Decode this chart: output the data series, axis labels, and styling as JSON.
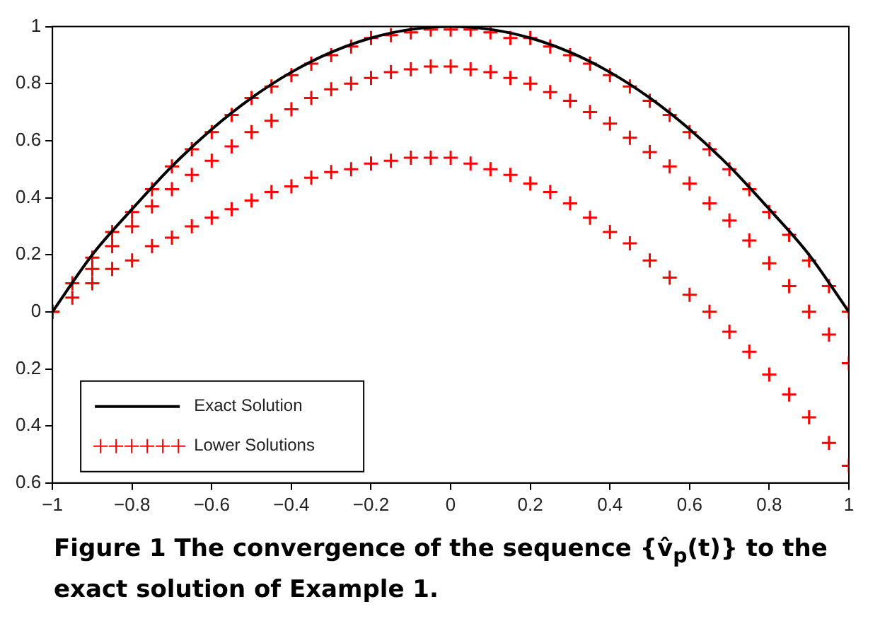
{
  "chart_data": {
    "type": "line",
    "x": [
      -1,
      -0.95,
      -0.9,
      -0.85,
      -0.8,
      -0.75,
      -0.7,
      -0.65,
      -0.6,
      -0.55,
      -0.5,
      -0.45,
      -0.4,
      -0.35,
      -0.3,
      -0.25,
      -0.2,
      -0.15,
      -0.1,
      -0.05,
      0,
      0.05,
      0.1,
      0.15,
      0.2,
      0.25,
      0.3,
      0.35,
      0.4,
      0.45,
      0.5,
      0.55,
      0.6,
      0.65,
      0.7,
      0.75,
      0.8,
      0.85,
      0.9,
      0.95,
      1
    ],
    "series": [
      {
        "name": "Exact Solution",
        "color": "#000000",
        "marker": "none",
        "line_style": "solid",
        "x": [
          -1,
          -0.9,
          -0.8,
          -0.7,
          -0.6,
          -0.5,
          -0.4,
          -0.3,
          -0.2,
          -0.1,
          0,
          0.1,
          0.2,
          0.3,
          0.4,
          0.5,
          0.6,
          0.7,
          0.8,
          0.9,
          1
        ],
        "values": [
          0,
          0.2,
          0.36,
          0.51,
          0.64,
          0.75,
          0.84,
          0.91,
          0.96,
          0.99,
          1,
          0.99,
          0.96,
          0.91,
          0.84,
          0.75,
          0.64,
          0.51,
          0.36,
          0.2,
          0
        ]
      },
      {
        "name": "Lower Solutions",
        "type": "scatter",
        "color": "#ff0000",
        "marker": "cross",
        "values": [
          0,
          0.1,
          0.19,
          0.28,
          0.35,
          0.43,
          0.51,
          0.57,
          0.63,
          0.69,
          0.75,
          0.79,
          0.83,
          0.87,
          0.9,
          0.93,
          0.96,
          0.97,
          0.98,
          0.99,
          0.99,
          0.99,
          0.98,
          0.96,
          0.96,
          0.93,
          0.9,
          0.87,
          0.83,
          0.79,
          0.74,
          0.69,
          0.63,
          0.57,
          0.5,
          0.43,
          0.35,
          0.27,
          0.18,
          0.09,
          0
        ]
      },
      {
        "type": "scatter",
        "color": "#ff0000",
        "marker": "cross",
        "values": [
          0,
          null,
          0.15,
          0.23,
          0.3,
          0.37,
          0.43,
          0.48,
          0.53,
          0.58,
          0.63,
          0.67,
          0.71,
          0.75,
          0.78,
          0.8,
          0.82,
          0.84,
          0.85,
          0.86,
          0.86,
          0.85,
          0.84,
          0.82,
          0.8,
          0.77,
          0.74,
          0.7,
          0.66,
          0.61,
          0.56,
          0.51,
          0.45,
          0.38,
          0.32,
          0.25,
          0.17,
          0.09,
          0,
          -0.08,
          -0.18
        ]
      },
      {
        "type": "scatter",
        "color": "#ff0000",
        "marker": "cross",
        "values": [
          0,
          0.05,
          0.1,
          0.15,
          0.18,
          0.23,
          0.26,
          0.3,
          0.33,
          0.36,
          0.39,
          0.42,
          0.44,
          0.47,
          0.49,
          0.5,
          0.52,
          0.53,
          0.54,
          0.54,
          0.54,
          0.52,
          0.5,
          0.48,
          0.45,
          0.42,
          0.38,
          0.33,
          0.28,
          0.24,
          0.18,
          0.12,
          0.06,
          0,
          -0.07,
          -0.14,
          -0.22,
          -0.29,
          -0.37,
          -0.46,
          -0.54
        ]
      }
    ],
    "xlim": [
      -1,
      1
    ],
    "ylim": [
      -0.6,
      1
    ],
    "xticks": [
      {
        "value": -1,
        "label": "−1"
      },
      {
        "value": -0.8,
        "label": "−0.8"
      },
      {
        "value": -0.6,
        "label": "−0.6"
      },
      {
        "value": -0.4,
        "label": "−0.4"
      },
      {
        "value": -0.2,
        "label": "−0.2"
      },
      0,
      0.2,
      0.4,
      0.6,
      0.8,
      1
    ],
    "yticks": [
      {
        "value": -0.6,
        "label": "0.6"
      },
      {
        "value": -0.4,
        "label": "0.4"
      },
      {
        "value": -0.2,
        "label": "0.2"
      },
      0,
      0.2,
      0.4,
      0.6,
      0.8,
      1
    ],
    "legend": "bottom left",
    "grid": false,
    "annotations": [
      "Figure 1 The convergence of the sequence {v̂$_{p}$(t)} to the exact solution of Example 1."
    ]
  }
}
